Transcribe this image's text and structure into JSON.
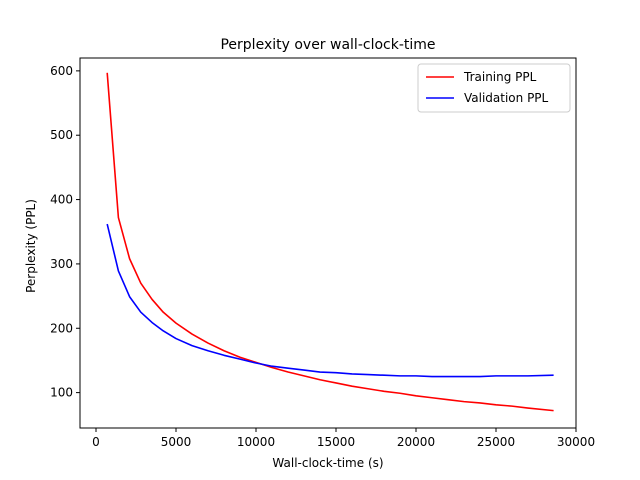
{
  "chart_data": {
    "type": "line",
    "title": "Perplexity over wall-clock-time",
    "xlabel": "Wall-clock-time (s)",
    "ylabel": "Perplexity (PPL)",
    "xlim": [
      -1000,
      30000
    ],
    "ylim": [
      45,
      620
    ],
    "xticks": [
      0,
      5000,
      10000,
      15000,
      20000,
      25000,
      30000
    ],
    "yticks": [
      100,
      200,
      300,
      400,
      500,
      600
    ],
    "grid": false,
    "legend_position": "top-right",
    "series": [
      {
        "name": "Training PPL",
        "color": "#ff0000",
        "x": [
          700,
          1400,
          2100,
          2800,
          3500,
          4200,
          5000,
          6000,
          7000,
          8000,
          9000,
          10000,
          11000,
          12000,
          13000,
          14000,
          15000,
          16000,
          17000,
          18000,
          19000,
          20000,
          21000,
          22000,
          23000,
          24000,
          25000,
          26000,
          27000,
          28600
        ],
        "y": [
          597,
          372,
          308,
          270,
          245,
          225,
          208,
          191,
          177,
          165,
          155,
          147,
          139,
          132,
          126,
          120,
          115,
          110,
          106,
          102,
          99,
          95,
          92,
          89,
          86,
          84,
          81,
          79,
          76,
          72
        ]
      },
      {
        "name": "Validation PPL",
        "color": "#0000ff",
        "x": [
          700,
          1400,
          2100,
          2800,
          3500,
          4200,
          5000,
          6000,
          7000,
          8000,
          9000,
          10000,
          11000,
          12000,
          13000,
          14000,
          15000,
          16000,
          17000,
          18000,
          19000,
          20000,
          21000,
          22000,
          23000,
          24000,
          25000,
          26000,
          27000,
          28600
        ],
        "y": [
          362,
          289,
          249,
          225,
          209,
          196,
          184,
          173,
          165,
          158,
          152,
          146,
          141,
          138,
          135,
          132,
          131,
          129,
          128,
          127,
          126,
          126,
          125,
          125,
          125,
          125,
          126,
          126,
          126,
          127
        ]
      }
    ]
  }
}
